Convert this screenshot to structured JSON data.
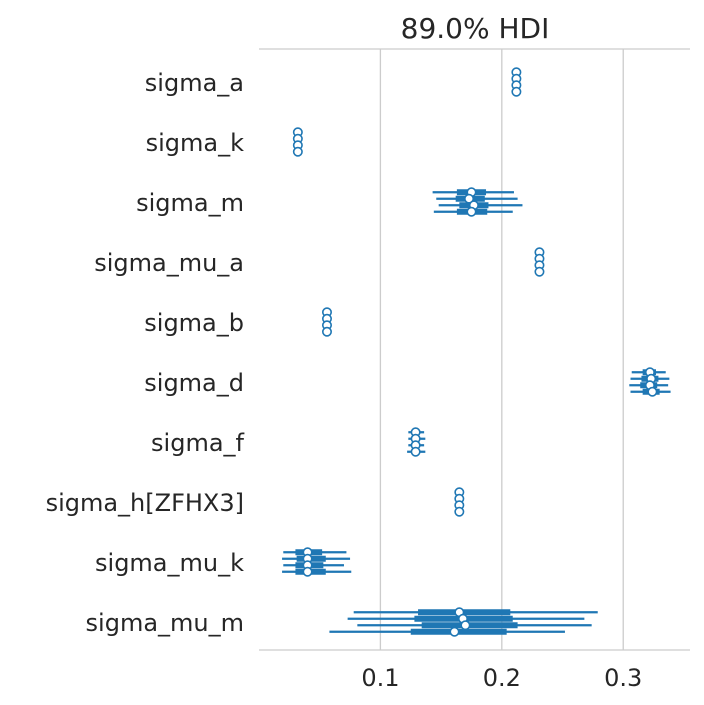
{
  "chart_data": {
    "type": "forest",
    "title": "89.0% HDI",
    "xlabel": "",
    "ylabel": "",
    "xlim": [
      0.0,
      0.355
    ],
    "xticks": [
      0.1,
      0.2,
      0.3
    ],
    "xtick_labels": [
      "0.1",
      "0.2",
      "0.3"
    ],
    "grid": "vertical",
    "color": "#1f77b4",
    "n_chains": 4,
    "variables": [
      {
        "name": "sigma_a",
        "chains": [
          {
            "mean": 0.212,
            "hdi_low": 0.212,
            "hdi_high": 0.212,
            "q25": 0.212,
            "q75": 0.212
          },
          {
            "mean": 0.212,
            "hdi_low": 0.212,
            "hdi_high": 0.212,
            "q25": 0.212,
            "q75": 0.212
          },
          {
            "mean": 0.212,
            "hdi_low": 0.212,
            "hdi_high": 0.212,
            "q25": 0.212,
            "q75": 0.212
          },
          {
            "mean": 0.212,
            "hdi_low": 0.212,
            "hdi_high": 0.212,
            "q25": 0.212,
            "q75": 0.212
          }
        ]
      },
      {
        "name": "sigma_k",
        "chains": [
          {
            "mean": 0.032,
            "hdi_low": 0.032,
            "hdi_high": 0.032,
            "q25": 0.032,
            "q75": 0.032
          },
          {
            "mean": 0.032,
            "hdi_low": 0.032,
            "hdi_high": 0.032,
            "q25": 0.032,
            "q75": 0.032
          },
          {
            "mean": 0.032,
            "hdi_low": 0.032,
            "hdi_high": 0.032,
            "q25": 0.032,
            "q75": 0.032
          },
          {
            "mean": 0.032,
            "hdi_low": 0.032,
            "hdi_high": 0.032,
            "q25": 0.032,
            "q75": 0.032
          }
        ]
      },
      {
        "name": "sigma_m",
        "chains": [
          {
            "mean": 0.175,
            "hdi_low": 0.143,
            "hdi_high": 0.21,
            "q25": 0.163,
            "q75": 0.187
          },
          {
            "mean": 0.173,
            "hdi_low": 0.146,
            "hdi_high": 0.213,
            "q25": 0.162,
            "q75": 0.186
          },
          {
            "mean": 0.177,
            "hdi_low": 0.148,
            "hdi_high": 0.217,
            "q25": 0.165,
            "q75": 0.189
          },
          {
            "mean": 0.175,
            "hdi_low": 0.144,
            "hdi_high": 0.209,
            "q25": 0.163,
            "q75": 0.188
          }
        ]
      },
      {
        "name": "sigma_mu_a",
        "chains": [
          {
            "mean": 0.231,
            "hdi_low": 0.231,
            "hdi_high": 0.231,
            "q25": 0.231,
            "q75": 0.231
          },
          {
            "mean": 0.231,
            "hdi_low": 0.231,
            "hdi_high": 0.231,
            "q25": 0.231,
            "q75": 0.231
          },
          {
            "mean": 0.231,
            "hdi_low": 0.231,
            "hdi_high": 0.231,
            "q25": 0.231,
            "q75": 0.231
          },
          {
            "mean": 0.231,
            "hdi_low": 0.231,
            "hdi_high": 0.231,
            "q25": 0.231,
            "q75": 0.231
          }
        ]
      },
      {
        "name": "sigma_b",
        "chains": [
          {
            "mean": 0.056,
            "hdi_low": 0.056,
            "hdi_high": 0.056,
            "q25": 0.056,
            "q75": 0.056
          },
          {
            "mean": 0.056,
            "hdi_low": 0.056,
            "hdi_high": 0.056,
            "q25": 0.056,
            "q75": 0.056
          },
          {
            "mean": 0.056,
            "hdi_low": 0.056,
            "hdi_high": 0.056,
            "q25": 0.056,
            "q75": 0.056
          },
          {
            "mean": 0.056,
            "hdi_low": 0.056,
            "hdi_high": 0.056,
            "q25": 0.056,
            "q75": 0.056
          }
        ]
      },
      {
        "name": "sigma_d",
        "chains": [
          {
            "mean": 0.322,
            "hdi_low": 0.307,
            "hdi_high": 0.335,
            "q25": 0.316,
            "q75": 0.327
          },
          {
            "mean": 0.323,
            "hdi_low": 0.306,
            "hdi_high": 0.338,
            "q25": 0.315,
            "q75": 0.329
          },
          {
            "mean": 0.322,
            "hdi_low": 0.305,
            "hdi_high": 0.337,
            "q25": 0.314,
            "q75": 0.328
          },
          {
            "mean": 0.324,
            "hdi_low": 0.306,
            "hdi_high": 0.339,
            "q25": 0.316,
            "q75": 0.33
          }
        ]
      },
      {
        "name": "sigma_f",
        "chains": [
          {
            "mean": 0.129,
            "hdi_low": 0.123,
            "hdi_high": 0.136,
            "q25": 0.126,
            "q75": 0.132
          },
          {
            "mean": 0.129,
            "hdi_low": 0.123,
            "hdi_high": 0.137,
            "q25": 0.126,
            "q75": 0.132
          },
          {
            "mean": 0.129,
            "hdi_low": 0.123,
            "hdi_high": 0.136,
            "q25": 0.126,
            "q75": 0.132
          },
          {
            "mean": 0.129,
            "hdi_low": 0.122,
            "hdi_high": 0.137,
            "q25": 0.126,
            "q75": 0.132
          }
        ]
      },
      {
        "name": "sigma_h[ZFHX3]",
        "chains": [
          {
            "mean": 0.165,
            "hdi_low": 0.165,
            "hdi_high": 0.165,
            "q25": 0.165,
            "q75": 0.165
          },
          {
            "mean": 0.165,
            "hdi_low": 0.165,
            "hdi_high": 0.165,
            "q25": 0.165,
            "q75": 0.165
          },
          {
            "mean": 0.165,
            "hdi_low": 0.165,
            "hdi_high": 0.165,
            "q25": 0.165,
            "q75": 0.165
          },
          {
            "mean": 0.165,
            "hdi_low": 0.165,
            "hdi_high": 0.165,
            "q25": 0.165,
            "q75": 0.165
          }
        ]
      },
      {
        "name": "sigma_mu_k",
        "chains": [
          {
            "mean": 0.04,
            "hdi_low": 0.02,
            "hdi_high": 0.072,
            "q25": 0.03,
            "q75": 0.052
          },
          {
            "mean": 0.04,
            "hdi_low": 0.019,
            "hdi_high": 0.075,
            "q25": 0.031,
            "q75": 0.055
          },
          {
            "mean": 0.04,
            "hdi_low": 0.02,
            "hdi_high": 0.07,
            "q25": 0.03,
            "q75": 0.053
          },
          {
            "mean": 0.04,
            "hdi_low": 0.019,
            "hdi_high": 0.076,
            "q25": 0.03,
            "q75": 0.055
          }
        ]
      },
      {
        "name": "sigma_mu_m",
        "chains": [
          {
            "mean": 0.165,
            "hdi_low": 0.078,
            "hdi_high": 0.279,
            "q25": 0.131,
            "q75": 0.207
          },
          {
            "mean": 0.168,
            "hdi_low": 0.073,
            "hdi_high": 0.268,
            "q25": 0.128,
            "q75": 0.209
          },
          {
            "mean": 0.17,
            "hdi_low": 0.081,
            "hdi_high": 0.274,
            "q25": 0.134,
            "q75": 0.213
          },
          {
            "mean": 0.161,
            "hdi_low": 0.058,
            "hdi_high": 0.252,
            "q25": 0.125,
            "q75": 0.204
          }
        ]
      }
    ]
  }
}
